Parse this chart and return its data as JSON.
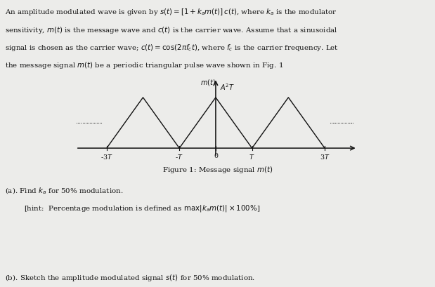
{
  "background_color": "#ececea",
  "text_color": "#111111",
  "main_text_lines": [
    "An amplitude modulated wave is given by $s(t) = [1 + k_a m(t)]\\,c(t)$, where $k_a$ is the modulator",
    "sensitivity, $m(t)$ is the message wave and $c(t)$ is the carrier wave. Assume that a sinusoidal",
    "signal is chosen as the carrier wave; $c(t) = \\cos(2\\pi f_c t)$, where $f_c$ is the carrier frequency. Let",
    "the message signal $m(t)$ be a periodic triangular pulse wave shown in Fig. 1"
  ],
  "figure_caption": "Figure 1: Message signal $m(t)$",
  "y_label": "$m(t)$",
  "y_peak_label": "$A^2T$",
  "x_tick_labels": [
    "-3$T$",
    "-$T$",
    "0",
    "$T$",
    "3$T$"
  ],
  "x_tick_pos": [
    -3,
    -1,
    0,
    1,
    3
  ],
  "part_a_text": "(a). Find $k_a$ for 50% modulation.",
  "part_a_hint": "[hint:  Percentage modulation is defined as $\\max|k_a m(t)| \\times 100\\%$]",
  "part_b_text": "(b). Sketch the amplitude modulated signal $s(t)$ for 50% modulation.",
  "dots_color": "#444444",
  "line_color": "#111111",
  "axis_color": "#111111",
  "tri_x": [
    -3,
    -2,
    -1,
    0,
    1,
    2,
    3
  ],
  "tri_y": [
    0,
    1,
    0,
    1,
    0,
    1,
    0
  ]
}
